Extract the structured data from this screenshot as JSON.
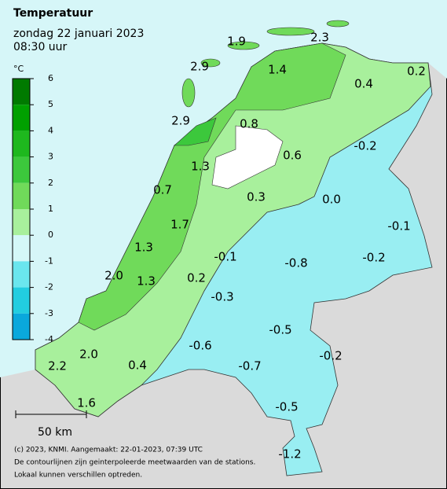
{
  "header": {
    "title": "Temperatuur",
    "date": "zondag 22 januari 2023",
    "time": "08:30 uur"
  },
  "legend": {
    "unit": "°C",
    "ticks": [
      6,
      5,
      4,
      3,
      2,
      1,
      0,
      -1,
      -2,
      -3,
      -4
    ],
    "colors": [
      "#007a00",
      "#00a000",
      "#1eb81e",
      "#3cc83c",
      "#70da5a",
      "#a8f09c",
      "#d4f8f8",
      "#6ae6ee",
      "#22cde0",
      "#0aa8dc"
    ]
  },
  "stations": [
    "1.9",
    "2.3",
    "2.9",
    "1.4",
    "0.4",
    "0.2",
    "2.9",
    "0.8",
    "-0.2",
    "0.6",
    "1.3",
    "0.7",
    "0.3",
    "0.0",
    "1.7",
    "-0.1",
    "1.3",
    "-0.1",
    "-0.8",
    "-0.2",
    "2.0",
    "1.3",
    "0.2",
    "-0.3",
    "-0.5",
    "-0.6",
    "-0.2",
    "2.0",
    "-0.7",
    "2.2",
    "0.4",
    "-0.5",
    "1.6",
    "-1.2"
  ],
  "scale": "50 km",
  "footer": [
    "(c) 2023, KNMI. Aangemaakt: 22-01-2023, 07:39 UTC",
    "De contourlijnen zijn geinterpoleerde meetwaarden van de stations.",
    "Lokaal kunnen verschillen optreden."
  ]
}
